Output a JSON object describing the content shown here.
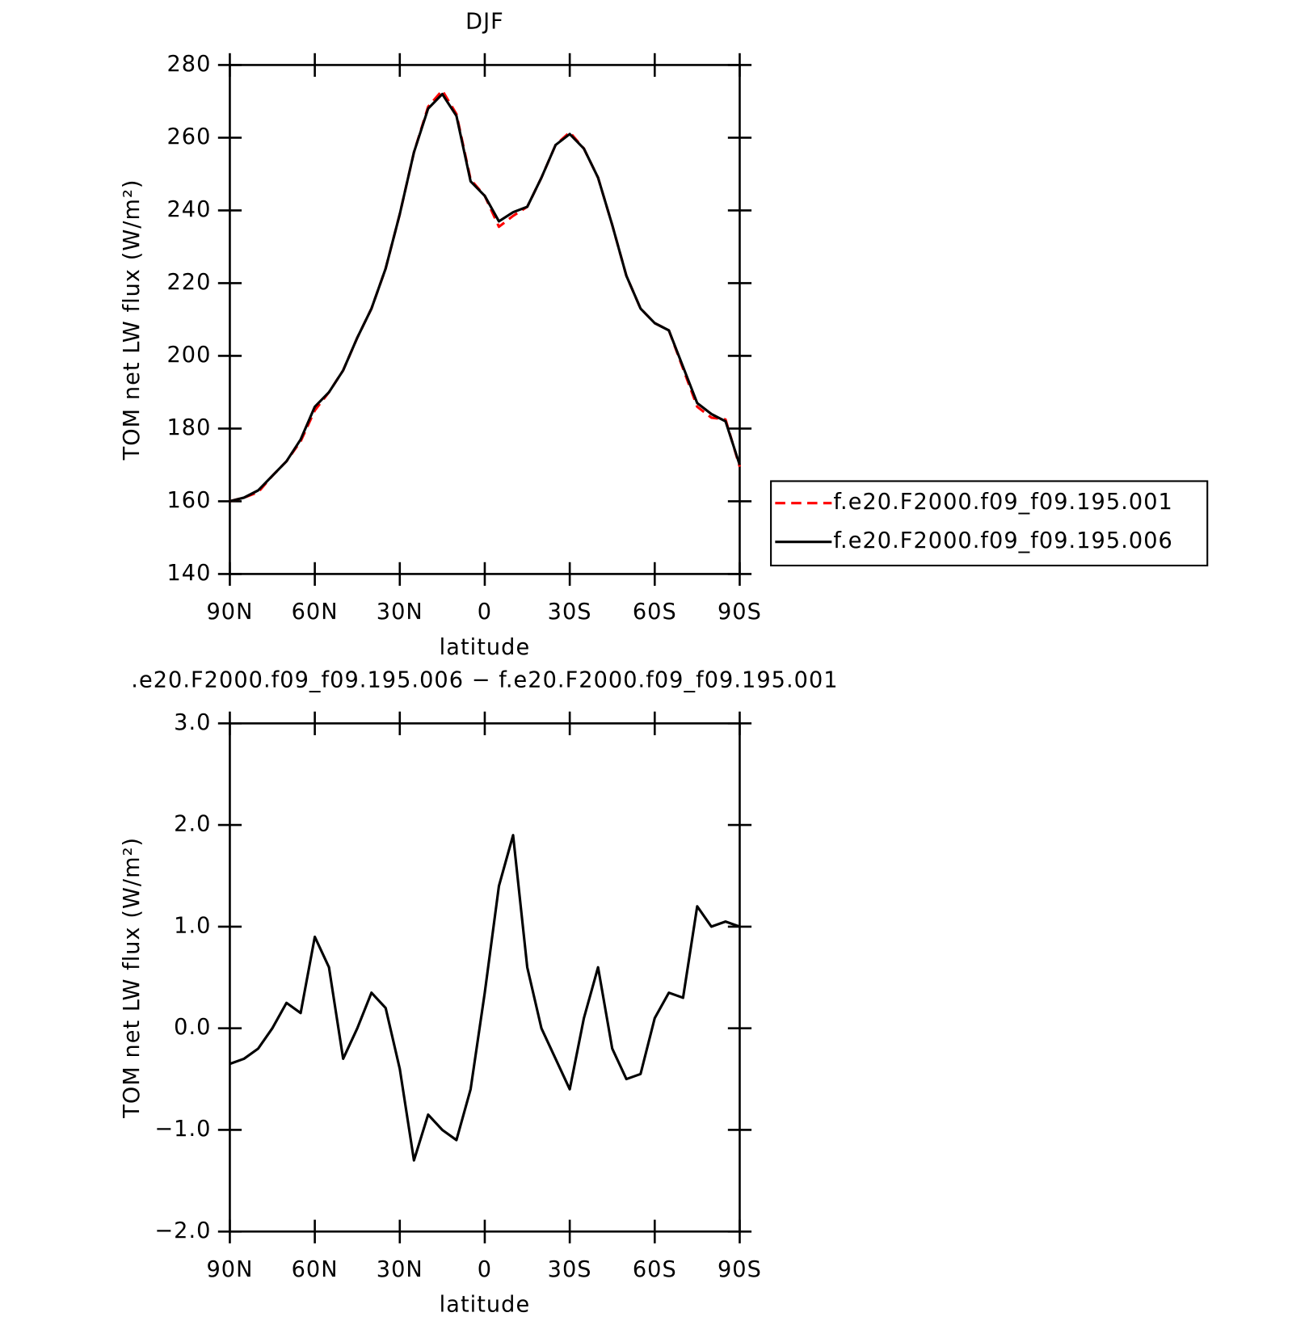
{
  "chart_data": [
    {
      "type": "line",
      "title": "DJF",
      "xlabel": "latitude",
      "ylabel": "TOM net LW flux (W/m²)",
      "x": [
        90,
        85,
        80,
        75,
        70,
        65,
        60,
        55,
        50,
        45,
        40,
        35,
        30,
        25,
        20,
        15,
        10,
        5,
        0,
        -5,
        -10,
        -15,
        -20,
        -25,
        -30,
        -35,
        -40,
        -45,
        -50,
        -55,
        -60,
        -65,
        -70,
        -75,
        -80,
        -85,
        -90
      ],
      "series": [
        {
          "name": "f.e20.F2000.f09_f09.195.001",
          "color": "#ff0000",
          "linestyle": "dashed",
          "values": [
            160,
            161,
            162.5,
            167,
            171,
            176.5,
            185,
            190,
            196,
            205,
            213,
            224,
            239,
            256,
            268.5,
            273,
            266.5,
            248.5,
            244,
            235.5,
            238.5,
            241,
            249,
            258,
            261.5,
            257,
            249,
            236,
            222,
            213,
            209,
            207,
            196.5,
            186,
            183,
            182.5,
            169.5
          ]
        },
        {
          "name": "f.e20.F2000.f09_f09.195.006",
          "color": "#000000",
          "linestyle": "solid",
          "values": [
            160,
            161,
            163,
            167,
            171,
            177,
            186,
            190,
            196,
            205,
            213,
            224,
            239,
            256,
            268,
            272,
            266,
            248,
            244,
            237,
            239.5,
            241,
            249,
            258,
            261,
            257,
            249,
            236,
            222,
            213,
            209,
            207,
            197,
            187,
            184,
            182,
            170
          ]
        }
      ],
      "xlim": [
        90,
        -90
      ],
      "xticks": [
        {
          "value": 90,
          "label": "90N"
        },
        {
          "value": 60,
          "label": "60N"
        },
        {
          "value": 30,
          "label": "30N"
        },
        0,
        {
          "value": -30,
          "label": "30S"
        },
        {
          "value": -60,
          "label": "60S"
        },
        {
          "value": -90,
          "label": "90S"
        }
      ],
      "ylim": [
        140,
        280
      ],
      "yticks": [
        140,
        160,
        180,
        200,
        220,
        240,
        260,
        280
      ],
      "legend": "right"
    },
    {
      "type": "line",
      "title": ".e20.F2000.f09_f09.195.006 − f.e20.F2000.f09_f09.195.001",
      "xlabel": "latitude",
      "ylabel": "TOM net LW flux (W/m²)",
      "x": [
        90,
        85,
        80,
        75,
        70,
        65,
        60,
        55,
        50,
        45,
        40,
        35,
        30,
        25,
        20,
        15,
        10,
        5,
        0,
        -5,
        -10,
        -15,
        -20,
        -25,
        -30,
        -35,
        -40,
        -45,
        -50,
        -55,
        -60,
        -65,
        -70,
        -75,
        -80,
        -85,
        -90
      ],
      "values": [
        -0.35,
        -0.3,
        -0.2,
        0.0,
        0.25,
        0.15,
        0.9,
        0.6,
        -0.3,
        0.0,
        0.35,
        0.2,
        -0.4,
        -1.3,
        -0.85,
        -1.0,
        -1.1,
        -0.6,
        0.35,
        1.4,
        1.9,
        0.6,
        0.0,
        -0.3,
        -0.6,
        0.1,
        0.6,
        -0.2,
        -0.5,
        -0.45,
        0.1,
        0.35,
        0.3,
        1.2,
        1.0,
        1.05,
        1.0
      ],
      "color": "#000000",
      "xlim": [
        90,
        -90
      ],
      "xticks": [
        {
          "value": 90,
          "label": "90N"
        },
        {
          "value": 60,
          "label": "60N"
        },
        {
          "value": 30,
          "label": "30N"
        },
        0,
        {
          "value": -30,
          "label": "30S"
        },
        {
          "value": -60,
          "label": "60S"
        },
        {
          "value": -90,
          "label": "90S"
        }
      ],
      "ylim": [
        -2.0,
        3.0
      ],
      "yticks": [
        {
          "value": -2.0,
          "label": "−2.0"
        },
        {
          "value": -1.0,
          "label": "−1.0"
        },
        {
          "value": 0.0,
          "label": "0.0"
        },
        {
          "value": 1.0,
          "label": "1.0"
        },
        {
          "value": 2.0,
          "label": "2.0"
        },
        {
          "value": 3.0,
          "label": "3.0"
        }
      ]
    }
  ]
}
